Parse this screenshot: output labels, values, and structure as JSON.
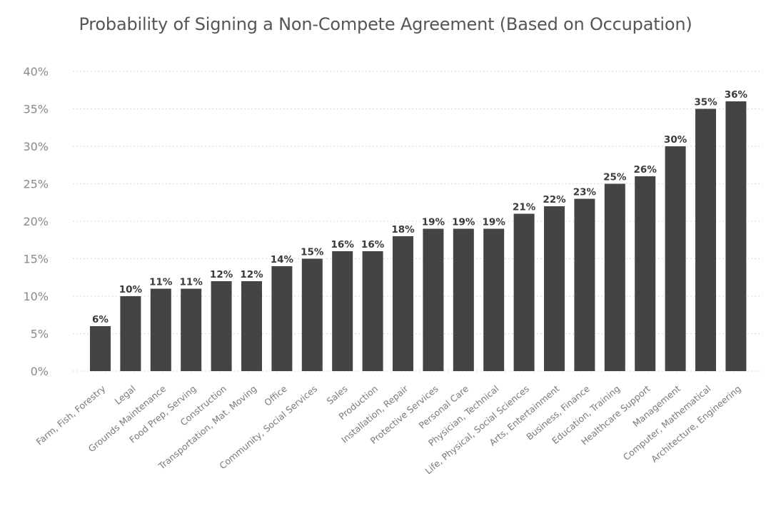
{
  "chart_data": {
    "type": "bar",
    "title": "Probability of Signing a Non-Compete Agreement (Based on Occupation)",
    "xlabel": "",
    "ylabel": "",
    "ylim": [
      0,
      40
    ],
    "yticks": [
      0,
      5,
      10,
      15,
      20,
      25,
      30,
      35,
      40
    ],
    "ytick_labels": [
      "0%",
      "5%",
      "10%",
      "15%",
      "20%",
      "25%",
      "30%",
      "35%",
      "40%"
    ],
    "grid": true,
    "bar_color": "#444444",
    "categories": [
      "Farm, Fish, Forestry",
      "Legal",
      "Grounds Maintenance",
      "Food Prep, Serving",
      "Construction",
      "Transportation, Mat. Moving",
      "Office",
      "Community, Social Services",
      "Sales",
      "Production",
      "Installation, Repair",
      "Protective Services",
      "Personal Care",
      "Physician, Technical",
      "Life, Physical, Social Sciences",
      "Arts, Entertainment",
      "Business, Finance",
      "Education, Training",
      "Healthcare Support",
      "Management",
      "Computer, Mathematical",
      "Architecture, Engineering"
    ],
    "values": [
      6,
      10,
      11,
      11,
      12,
      12,
      14,
      15,
      16,
      16,
      18,
      19,
      19,
      19,
      21,
      22,
      23,
      25,
      26,
      30,
      35,
      36
    ],
    "data_labels": [
      "6%",
      "10%",
      "11%",
      "11%",
      "12%",
      "12%",
      "14%",
      "15%",
      "16%",
      "16%",
      "18%",
      "19%",
      "19%",
      "19%",
      "21%",
      "22%",
      "23%",
      "25%",
      "26%",
      "30%",
      "35%",
      "36%"
    ]
  }
}
